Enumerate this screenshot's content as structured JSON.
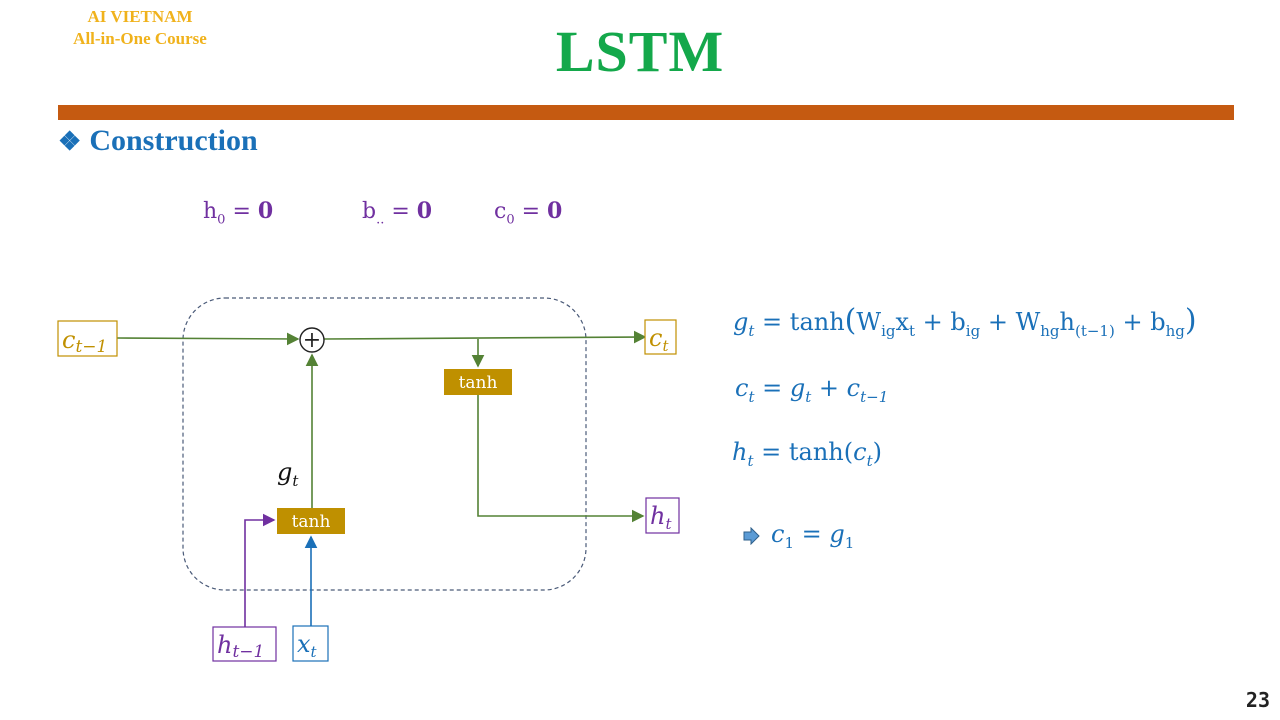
{
  "header": {
    "brand_line1": "AI VIETNAM",
    "brand_line2": "All-in-One Course",
    "title": "LSTM"
  },
  "section": {
    "bullet": "❖",
    "title": "Construction"
  },
  "init": {
    "h0": {
      "sym": "h",
      "sub": "0",
      "eq": "=",
      "val": "0"
    },
    "b": {
      "sym": "b",
      "sub": "..",
      "eq": "=",
      "val": "0"
    },
    "c0": {
      "sym": "c",
      "sub": "0",
      "eq": "=",
      "val": "0"
    }
  },
  "diagram": {
    "c_prev": {
      "sym": "c",
      "sub": "t−1"
    },
    "c_out": {
      "sym": "c",
      "sub": "t"
    },
    "h_out": {
      "sym": "h",
      "sub": "t"
    },
    "h_prev": {
      "sym": "h",
      "sub": "t−1"
    },
    "x_in": {
      "sym": "x",
      "sub": "t"
    },
    "g_label": {
      "sym": "g",
      "sub": "t"
    },
    "plus": "+",
    "tanh_top": "tanh",
    "tanh_bottom": "tanh",
    "colors": {
      "gold": "#c09000",
      "purple": "#7030a0",
      "blue": "#1a70b8",
      "green": "#548235",
      "gate": "#bf9000"
    }
  },
  "equations": {
    "g": {
      "lhs": "g",
      "lhs_sub": "t",
      "eq": "=",
      "fn": "tanh",
      "w1": "W",
      "w1_sub": "ig",
      "x": "x",
      "x_sub": "t",
      "b1": "b",
      "b1_sub": "ig",
      "w2": "W",
      "w2_sub": "hg",
      "h": "h",
      "h_sub": "(t−1)",
      "b2": "b",
      "b2_sub": "hg"
    },
    "c": {
      "lhs": "c",
      "lhs_sub": "t",
      "eq": "=",
      "r1": "g",
      "r1_sub": "t",
      "plus": "+",
      "r2": "c",
      "r2_sub": "t−1"
    },
    "h": {
      "lhs": "h",
      "lhs_sub": "t",
      "eq": "=",
      "fn": "tanh",
      "arg": "c",
      "arg_sub": "t"
    },
    "result": {
      "lhs": "c",
      "lhs_sub": "1",
      "eq": "=",
      "rhs": "g",
      "rhs_sub": "1"
    }
  },
  "page_number": "23"
}
